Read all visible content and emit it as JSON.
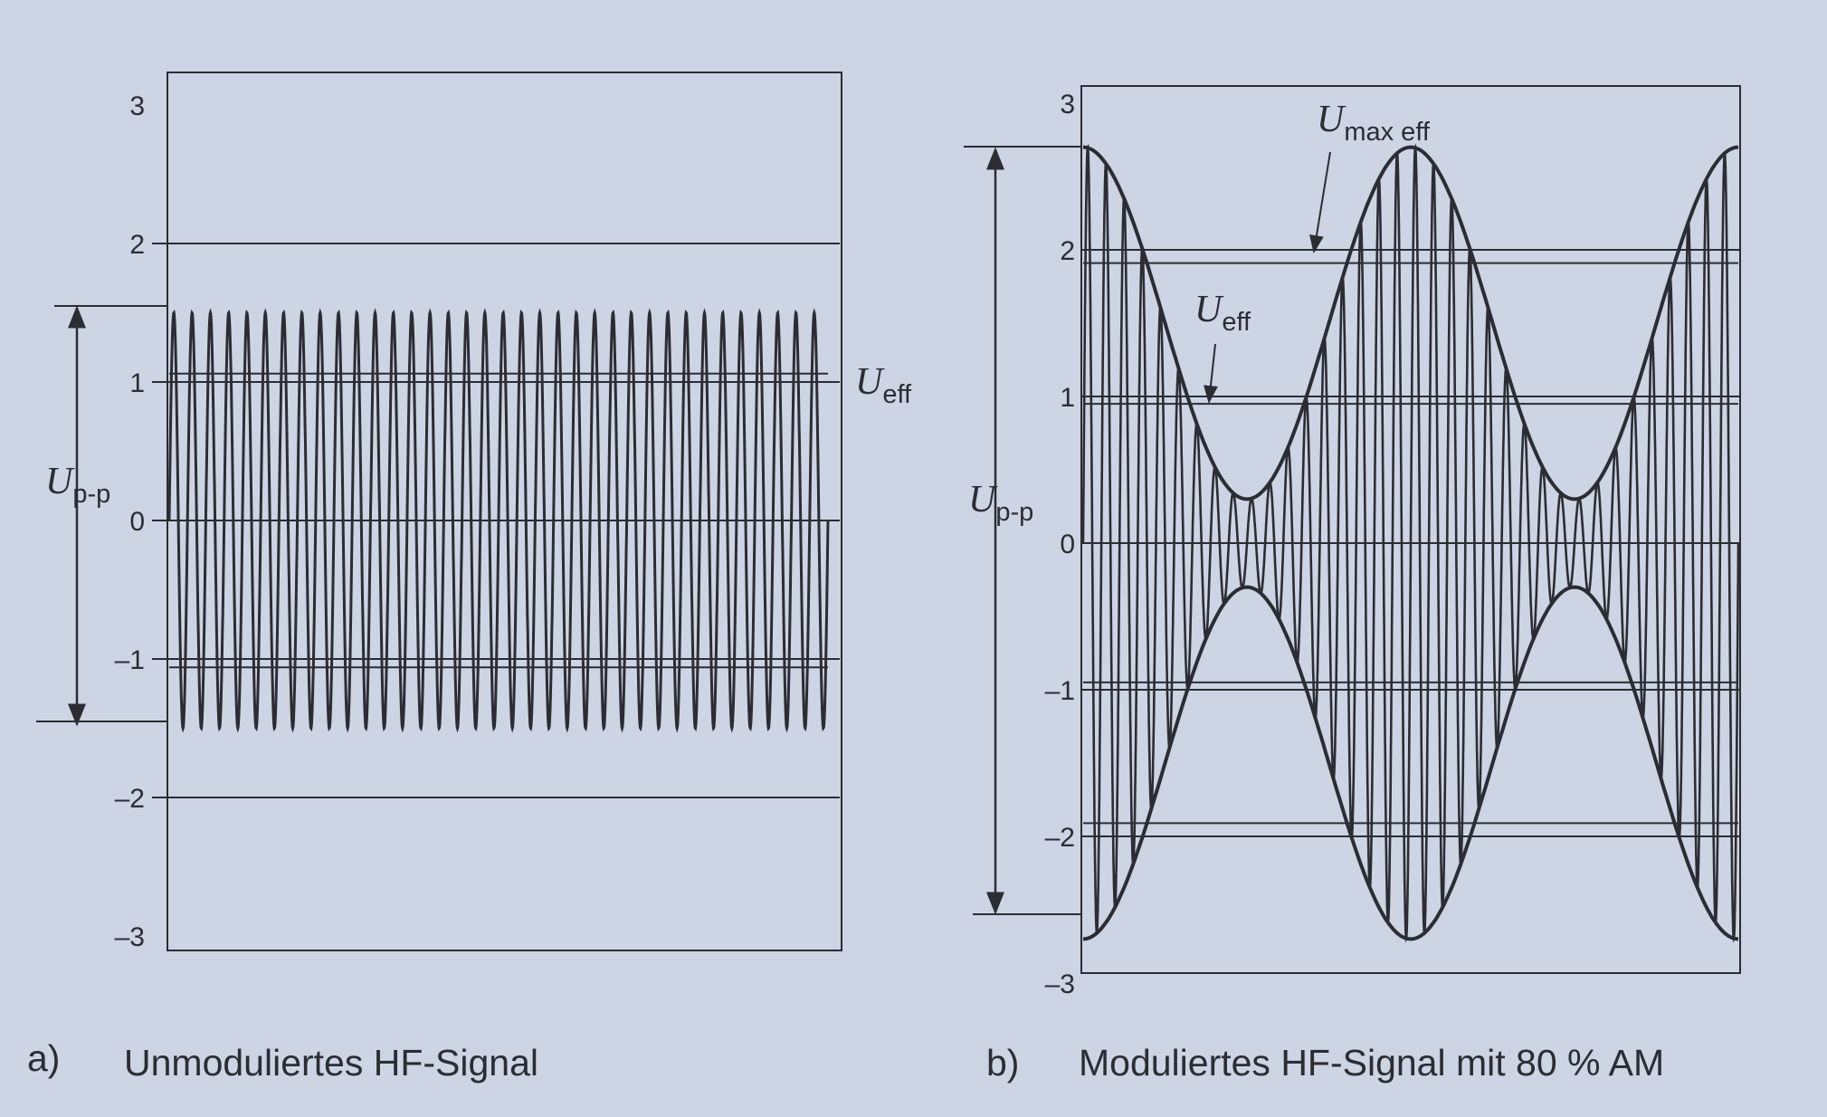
{
  "colors": {
    "ink": "#2b2d33",
    "paper": "#cdd4e3"
  },
  "chart_data": [
    {
      "type": "line",
      "panel_letter": "a)",
      "title": "Unmoduliertes HF-Signal",
      "ylim": [
        -3,
        3
      ],
      "y_ticks": [
        "3",
        "2",
        "1",
        "0",
        "–1",
        "–2",
        "–3"
      ],
      "grid_lines_y": [
        2,
        1,
        0,
        -1,
        -2
      ],
      "amplitude": 1.5,
      "carrier_cycles": 36,
      "annotations": {
        "peak_to_peak": {
          "main": "U",
          "sub": "p-p"
        },
        "rms": {
          "main": "U",
          "sub": "eff",
          "value": 1.06
        }
      }
    },
    {
      "type": "line",
      "panel_letter": "b)",
      "title": "Moduliertes HF-Signal mit 80 % AM",
      "ylim": [
        -3,
        3
      ],
      "y_ticks": [
        "3",
        "2",
        "1",
        "0",
        "–1",
        "–2",
        "–3"
      ],
      "grid_lines_y": [
        2,
        1,
        0,
        -1,
        -2
      ],
      "carrier_amplitude": 1.5,
      "modulation_depth": 0.8,
      "envelope_max": 2.7,
      "envelope_min": 0.3,
      "modulation_cycles": 2,
      "carrier_cycles": 36,
      "annotations": {
        "peak_to_peak": {
          "main": "U",
          "sub": "p-p"
        },
        "max_rms": {
          "main": "U",
          "sub": "max eff",
          "value": 1.91
        },
        "rms": {
          "main": "U",
          "sub": "eff",
          "value": 0.95
        }
      }
    }
  ]
}
